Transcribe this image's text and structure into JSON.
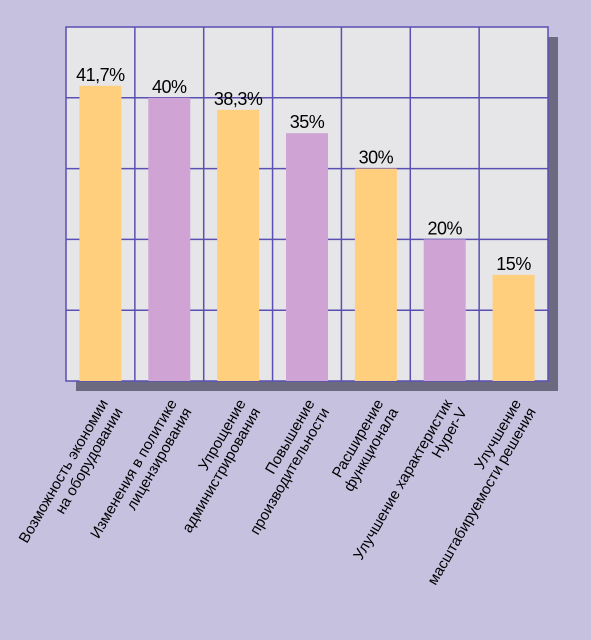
{
  "chart_data": {
    "type": "bar",
    "categories": [
      [
        "Возможность экономии",
        "на оборудовании"
      ],
      [
        "Изменения в политике",
        "лицензирования"
      ],
      [
        "Упрощение",
        "администрирования"
      ],
      [
        "Повышение",
        "производительности"
      ],
      [
        "Расширение",
        "функционала"
      ],
      [
        "Улучшение характеристик",
        "Hyper-V"
      ],
      [
        "Улучшение",
        "масштабируемости решения"
      ]
    ],
    "values": [
      41.7,
      40,
      38.3,
      35,
      30,
      20,
      15
    ],
    "value_labels": [
      "41,7%",
      "40%",
      "38,3%",
      "35%",
      "30%",
      "20%",
      "15%"
    ],
    "bar_colors": [
      "#ffcf7e",
      "#cfa3d3",
      "#ffcf7e",
      "#cfa3d3",
      "#ffcf7e",
      "#cfa3d3",
      "#ffcf7e"
    ],
    "ylim": [
      0,
      50
    ],
    "y_grid_step": 10,
    "grid": true,
    "legend": "none",
    "title": "",
    "xlabel": "",
    "ylabel": "",
    "colors": {
      "page_background": "#c7c1e0",
      "plot_background": "#e6e6e9",
      "grid": "#5a4fb2",
      "shadow": "#5a5a6e",
      "text": "#000000"
    }
  }
}
